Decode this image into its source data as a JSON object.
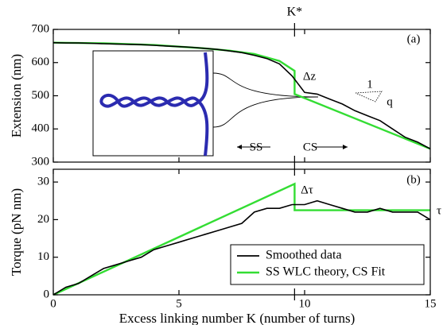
{
  "chart_data": [
    {
      "type": "line",
      "ylabel": "Extension (nm)",
      "xlim": [
        0,
        15
      ],
      "ylim": [
        300,
        700
      ],
      "xticks": [
        0,
        5,
        10,
        15
      ],
      "yticks": [
        300,
        400,
        500,
        600,
        700
      ],
      "show_xtick_labels": false,
      "marker": {
        "label": "K*",
        "x": 9.6
      },
      "annotations": [
        "(a)",
        "Δz",
        "SS",
        "CS",
        "1",
        "q"
      ],
      "series": [
        {
          "name": "Smoothed data",
          "color": "#000000",
          "x": [
            0,
            0.5,
            1,
            1.5,
            2,
            2.5,
            3,
            3.5,
            4,
            4.5,
            5,
            5.5,
            6,
            6.5,
            7,
            7.5,
            8,
            8.5,
            9,
            9.5,
            10,
            10.5,
            11,
            11.5,
            12,
            12.5,
            13,
            13.5,
            14,
            14.5,
            15
          ],
          "values": [
            660,
            659,
            659,
            658,
            657,
            656,
            655,
            654,
            652,
            650,
            648,
            646,
            643,
            640,
            635,
            630,
            622,
            612,
            596,
            560,
            510,
            505,
            490,
            475,
            455,
            440,
            425,
            400,
            375,
            360,
            340
          ]
        },
        {
          "name": "SS WLC theory, CS Fit",
          "color": "#33dd33",
          "x": [
            0,
            2,
            4,
            6,
            7,
            8,
            9,
            9.6,
            9.6,
            15
          ],
          "values": [
            660,
            658,
            653,
            643,
            636,
            626,
            605,
            575,
            505,
            340
          ]
        }
      ]
    },
    {
      "type": "line",
      "ylabel": "Torque (pN nm)",
      "xlabel": "Excess linking number K (number of turns)",
      "xlim": [
        0,
        15
      ],
      "ylim": [
        0,
        33.4
      ],
      "xticks": [
        0,
        5,
        10,
        15
      ],
      "yticks": [
        0,
        10,
        20,
        30
      ],
      "show_xtick_labels": true,
      "annotations": [
        "(b)",
        "Δτ",
        "τ"
      ],
      "legend": "lower right",
      "series": [
        {
          "name": "Smoothed data",
          "color": "#000000",
          "x": [
            0,
            0.5,
            1,
            1.5,
            2,
            2.5,
            3,
            3.5,
            4,
            4.5,
            5,
            5.5,
            6,
            6.5,
            7,
            7.5,
            8,
            8.5,
            9,
            9.5,
            10,
            10.5,
            11,
            11.5,
            12,
            12.5,
            13,
            13.5,
            14,
            14.5,
            15
          ],
          "values": [
            0,
            2,
            3,
            5,
            7,
            8,
            9,
            10,
            12,
            13,
            14,
            15,
            16,
            17,
            18,
            19,
            22,
            23,
            23,
            24,
            24,
            25,
            24,
            23,
            22,
            22,
            23,
            22,
            22,
            22,
            20
          ]
        },
        {
          "name": "SS WLC theory, CS Fit",
          "color": "#33dd33",
          "x": [
            0,
            9.6,
            9.6,
            15
          ],
          "values": [
            0,
            29.5,
            22.5,
            22.5
          ]
        }
      ]
    }
  ]
}
